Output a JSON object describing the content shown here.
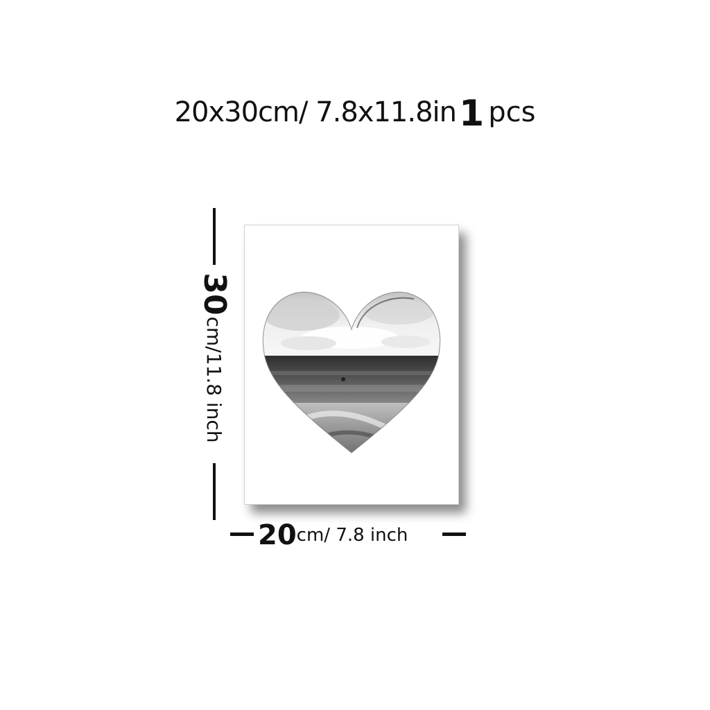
{
  "headline": {
    "size_text": "20x30cm/ 7.8x11.8in",
    "qty_number": "1",
    "qty_unit": "pcs"
  },
  "dimensions": {
    "height_value": "30",
    "height_unit": "cm/11.8 inch",
    "width_value": "20",
    "width_unit": "cm/ 7.8 inch"
  },
  "artwork": {
    "subject": "heart-shaped black and white seascape",
    "colors": {
      "sky_light": "#f2f2f2",
      "cloud": "#d6d6d6",
      "sea_dark": "#3a3a3a",
      "shore": "#9a9a9a"
    }
  }
}
